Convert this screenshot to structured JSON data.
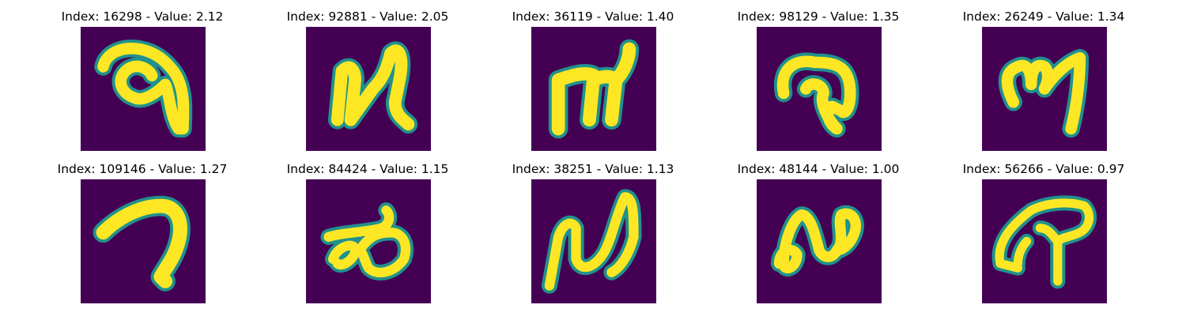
{
  "panels": [
    {
      "title": "Index: 16298 - Value: 2.12",
      "glyph": "glyph-a"
    },
    {
      "title": "Index: 92881 - Value: 2.05",
      "glyph": "glyph-b"
    },
    {
      "title": "Index: 36119 - Value: 1.40",
      "glyph": "glyph-c"
    },
    {
      "title": "Index: 98129 - Value: 1.35",
      "glyph": "glyph-d"
    },
    {
      "title": "Index: 26249 - Value: 1.34",
      "glyph": "glyph-e"
    },
    {
      "title": "Index: 109146 - Value: 1.27",
      "glyph": "glyph-f"
    },
    {
      "title": "Index: 84424 - Value: 1.15",
      "glyph": "glyph-g"
    },
    {
      "title": "Index: 38251 - Value: 1.13",
      "glyph": "glyph-h"
    },
    {
      "title": "Index: 48144 - Value: 1.00",
      "glyph": "glyph-i"
    },
    {
      "title": "Index: 56266 - Value: 0.97",
      "glyph": "glyph-j"
    }
  ],
  "colors": {
    "background": "#440154",
    "stroke": "#fde725",
    "edge": "#21918c"
  }
}
